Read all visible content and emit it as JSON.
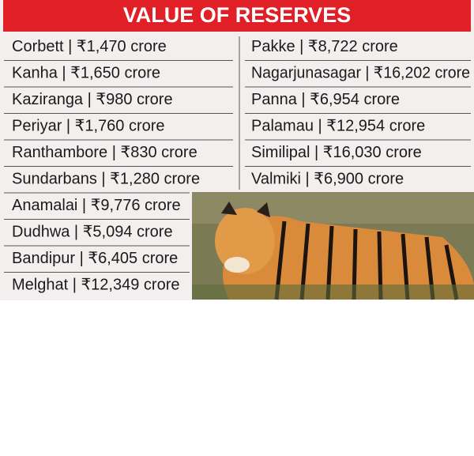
{
  "header": {
    "title": "VALUE OF RESERVES"
  },
  "left_column": [
    "Corbett | ₹1,470 crore",
    "Kanha | ₹1,650 crore",
    "Kaziranga | ₹980 crore",
    "Periyar | ₹1,760 crore",
    "Ranthambore | ₹830 crore",
    "Sundarbans | ₹1,280 crore",
    "Anamalai | ₹9,776 crore",
    "Dudhwa | ₹5,094 crore",
    "Bandipur | ₹6,405 crore",
    "Melghat | ₹12,349 crore"
  ],
  "right_column": [
    "Pakke | ₹8,722 crore",
    "Nagarjunasagar | ₹16,202 crore",
    "Panna | ₹6,954 crore",
    "Palamau | ₹12,954 crore",
    "Similipal | ₹16,030 crore",
    "Valmiki | ₹6,900 crore"
  ]
}
